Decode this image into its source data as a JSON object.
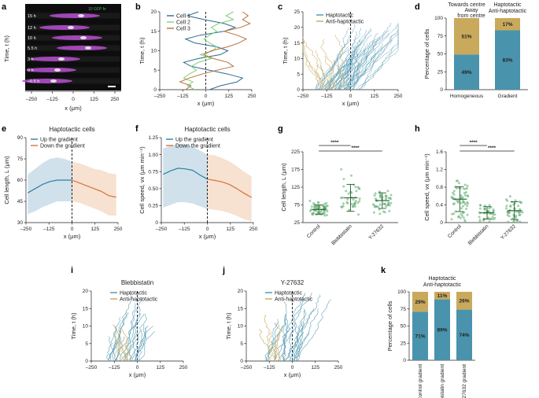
{
  "colors": {
    "haptotactic": "#4a93ad",
    "anti": "#c9a95c",
    "up": "#2f7fa6",
    "down": "#d2753c",
    "up_band": "#c8dce8",
    "down_band": "#f6dcc9",
    "cell1": "#2f6b8f",
    "cell2": "#7fcf7a",
    "cell3": "#b8703a",
    "gradient_dot": "#5aa86a",
    "kymo_bg": "#0d0d0d",
    "kymo_cell": "#b04cc9"
  },
  "panel_labels": [
    "a",
    "b",
    "c",
    "d",
    "e",
    "f",
    "g",
    "h",
    "i",
    "j",
    "k"
  ],
  "panel_a": {
    "ylabel": "Time, t (h)",
    "xlabel": "x (μm)",
    "overlay_label": "10 GFP fn",
    "time_labels": [
      "15 h",
      "12 h",
      "10 h",
      "5.5 h",
      "3 h",
      "0 h",
      "–0.5 h"
    ],
    "x_ticks": [
      "–250",
      "–125",
      "0",
      "125",
      "250"
    ]
  },
  "chart_data": [
    {
      "id": "b",
      "type": "line",
      "xlabel": "x (μm)",
      "ylabel": "Time, t (h)",
      "xlim": [
        -250,
        250
      ],
      "ylim": [
        0,
        20
      ],
      "x_ticks": [
        "–250",
        "–125",
        "0",
        "125",
        "250"
      ],
      "y_ticks": [
        "0",
        "5",
        "10",
        "15",
        "20"
      ],
      "legend": [
        "Cell 1",
        "Cell 2",
        "Cell 3"
      ],
      "series": [
        {
          "name": "Cell 1",
          "points": [
            [
              20,
              0
            ],
            [
              80,
              1
            ],
            [
              170,
              2
            ],
            [
              200,
              3
            ],
            [
              120,
              4
            ],
            [
              20,
              5
            ],
            [
              -80,
              6
            ],
            [
              -120,
              7
            ],
            [
              -40,
              8
            ],
            [
              80,
              9
            ],
            [
              120,
              10
            ],
            [
              60,
              11
            ],
            [
              -60,
              12
            ],
            [
              -110,
              13
            ],
            [
              -30,
              14
            ],
            [
              100,
              15
            ],
            [
              160,
              16
            ],
            [
              100,
              17
            ],
            [
              -10,
              18
            ],
            [
              -100,
              19
            ],
            [
              -40,
              20
            ]
          ]
        },
        {
          "name": "Cell 2",
          "points": [
            [
              -60,
              0
            ],
            [
              -100,
              1
            ],
            [
              -70,
              2
            ],
            [
              -120,
              3
            ],
            [
              -90,
              4
            ],
            [
              -50,
              5
            ],
            [
              -80,
              6
            ],
            [
              -40,
              7
            ],
            [
              30,
              8
            ],
            [
              -30,
              9
            ],
            [
              40,
              10
            ],
            [
              60,
              11
            ],
            [
              20,
              12
            ],
            [
              -10,
              13
            ],
            [
              20,
              14
            ],
            [
              60,
              15
            ],
            [
              30,
              16
            ],
            [
              70,
              17
            ],
            [
              150,
              18
            ],
            [
              110,
              19
            ],
            [
              150,
              20
            ]
          ]
        },
        {
          "name": "Cell 3",
          "points": [
            [
              -110,
              0
            ],
            [
              -80,
              1
            ],
            [
              -140,
              2
            ],
            [
              -90,
              3
            ],
            [
              -20,
              4
            ],
            [
              60,
              5
            ],
            [
              150,
              6
            ],
            [
              120,
              7
            ],
            [
              40,
              8
            ],
            [
              -10,
              9
            ],
            [
              30,
              10
            ],
            [
              120,
              11
            ],
            [
              180,
              12
            ],
            [
              220,
              13
            ],
            [
              170,
              14
            ],
            [
              100,
              15
            ],
            [
              190,
              16
            ],
            [
              240,
              17
            ],
            [
              200,
              18
            ],
            [
              230,
              19
            ],
            [
              200,
              20
            ]
          ]
        }
      ]
    },
    {
      "id": "c",
      "type": "line",
      "xlabel": "x (μm)",
      "ylabel": "Time, t (h)",
      "xlim": [
        -250,
        250
      ],
      "ylim": [
        0,
        25
      ],
      "x_ticks": [
        "–250",
        "–125",
        "0",
        "125",
        "250"
      ],
      "y_ticks": [
        "0",
        "5",
        "10",
        "15",
        "20",
        "25"
      ],
      "legend": [
        "Haptotactic",
        "Anti-haptotactic"
      ]
    },
    {
      "id": "d",
      "type": "bar",
      "stacked": true,
      "ylabel": "Percentage of cells",
      "ylim": [
        0,
        100
      ],
      "y_ticks": [
        "0",
        "25",
        "50",
        "75",
        "100"
      ],
      "categories": [
        "Homogeneous",
        "Gradient"
      ],
      "headers": [
        [
          "Towards centre",
          "Away from centre"
        ],
        [
          "Haptotactic",
          "Anti-haptotactic"
        ]
      ],
      "series": [
        {
          "values": [
            49,
            83
          ],
          "labels": [
            "49%",
            "83%"
          ]
        },
        {
          "values": [
            51,
            17
          ],
          "labels": [
            "51%",
            "17%"
          ]
        }
      ]
    },
    {
      "id": "e",
      "type": "area",
      "title": "Haptotactic cells",
      "xlabel": "x (μm)",
      "ylabel": "Cell length, L (μm)",
      "xlim": [
        -250,
        250
      ],
      "ylim": [
        30,
        90
      ],
      "x_ticks": [
        "–250",
        "–125",
        "0",
        "125",
        "250"
      ],
      "y_ticks": [
        "30",
        "45",
        "60",
        "75",
        "90"
      ],
      "legend": [
        "Up the gradient",
        "Down the gradient"
      ],
      "series": [
        {
          "name": "Up the gradient",
          "x": [
            -240,
            -200,
            -160,
            -120,
            -80,
            -40,
            0
          ],
          "y": [
            51,
            54,
            57,
            59,
            60,
            60,
            60
          ],
          "lo": [
            36,
            38,
            41,
            43,
            45,
            45,
            45
          ],
          "hi": [
            64,
            68,
            72,
            75,
            76,
            75,
            73
          ]
        },
        {
          "name": "Down the gradient",
          "x": [
            0,
            40,
            80,
            120,
            160,
            200,
            240
          ],
          "y": [
            60,
            58,
            56,
            54,
            52,
            49,
            48
          ],
          "lo": [
            45,
            44,
            42,
            40,
            38,
            35,
            35
          ],
          "hi": [
            73,
            72,
            70,
            68,
            67,
            65,
            64
          ]
        }
      ]
    },
    {
      "id": "f",
      "type": "area",
      "title": "Haptotactic cells",
      "xlabel": "x (μm)",
      "ylabel": "Cell speed, vx (μm min⁻¹)",
      "xlim": [
        -250,
        250
      ],
      "ylim": [
        0,
        1.25
      ],
      "x_ticks": [
        "–250",
        "–125",
        "0",
        "125",
        "250"
      ],
      "y_ticks": [
        "0",
        "0.25",
        "0.50",
        "0.75",
        "1.00",
        "1.25"
      ],
      "legend": [
        "Up the gradient",
        "Down the gradient"
      ],
      "series": [
        {
          "name": "Up the gradient",
          "x": [
            -240,
            -200,
            -160,
            -120,
            -80,
            -40,
            0
          ],
          "y": [
            0.71,
            0.76,
            0.8,
            0.79,
            0.77,
            0.7,
            0.64
          ],
          "lo": [
            0.22,
            0.26,
            0.3,
            0.3,
            0.28,
            0.24,
            0.2
          ],
          "hi": [
            1.09,
            1.13,
            1.16,
            1.15,
            1.12,
            1.06,
            1.0
          ]
        },
        {
          "name": "Down the gradient",
          "x": [
            0,
            40,
            80,
            120,
            160,
            200,
            240
          ],
          "y": [
            0.64,
            0.62,
            0.6,
            0.56,
            0.5,
            0.43,
            0.37
          ],
          "lo": [
            0.2,
            0.19,
            0.17,
            0.14,
            0.1,
            0.05,
            0.02
          ],
          "hi": [
            1.0,
            0.99,
            0.95,
            0.9,
            0.83,
            0.75,
            0.68
          ]
        }
      ]
    },
    {
      "id": "g",
      "type": "scatter",
      "ylabel": "Cell length, L (μm)",
      "ylim": [
        25,
        225
      ],
      "y_ticks": [
        "25",
        "75",
        "125",
        "175",
        "225"
      ],
      "categories": [
        "Control",
        "Blebbistatin",
        "Y-27632"
      ],
      "means": [
        62,
        95,
        87
      ],
      "sds": [
        13,
        38,
        22
      ],
      "significance": [
        "****",
        "****"
      ]
    },
    {
      "id": "h",
      "type": "scatter",
      "ylabel": "Cell speed, vx (μm min⁻¹)",
      "ylim": [
        0,
        1.6
      ],
      "y_ticks": [
        "0",
        "0.4",
        "0.8",
        "1.2",
        "1.6"
      ],
      "categories": [
        "Control",
        "Blebbistatin",
        "Y-27632"
      ],
      "means": [
        0.53,
        0.22,
        0.27
      ],
      "sds": [
        0.28,
        0.14,
        0.2
      ],
      "significance": [
        "****",
        "****"
      ]
    },
    {
      "id": "i",
      "type": "line",
      "title": "Blebbistatin",
      "xlabel": "x (μm)",
      "ylabel": "Time, t (h)",
      "xlim": [
        -250,
        250
      ],
      "ylim": [
        0,
        20
      ],
      "x_ticks": [
        "–250",
        "–125",
        "0",
        "125",
        "250"
      ],
      "y_ticks": [
        "0",
        "5",
        "10",
        "15",
        "20"
      ],
      "legend": [
        "Haptotactic",
        "Anti-haptotactic"
      ]
    },
    {
      "id": "j",
      "type": "line",
      "title": "Y-27632",
      "xlabel": "x (μm)",
      "ylabel": "Time, t (h)",
      "xlim": [
        -250,
        250
      ],
      "ylim": [
        0,
        20
      ],
      "x_ticks": [
        "–250",
        "–125",
        "0",
        "125",
        "250"
      ],
      "y_ticks": [
        "0",
        "5",
        "10",
        "15",
        "20"
      ],
      "legend": [
        "Haptotactic",
        "Anti-haptotactic"
      ]
    },
    {
      "id": "k",
      "type": "bar",
      "stacked": true,
      "ylabel": "Percentage of cells",
      "ylim": [
        0,
        100
      ],
      "y_ticks": [
        "0",
        "25",
        "50",
        "75",
        "100"
      ],
      "categories": [
        "Control gradient",
        "Blebbistatin gradient",
        "Y-27632 gradient"
      ],
      "headers": [
        [
          "Haptotactic",
          "Anti-haptotactic"
        ]
      ],
      "series": [
        {
          "values": [
            71,
            89,
            74
          ],
          "labels": [
            "71%",
            "89%",
            "74%"
          ]
        },
        {
          "values": [
            29,
            11,
            26
          ],
          "labels": [
            "29%",
            "11%",
            "26%"
          ]
        }
      ]
    }
  ]
}
